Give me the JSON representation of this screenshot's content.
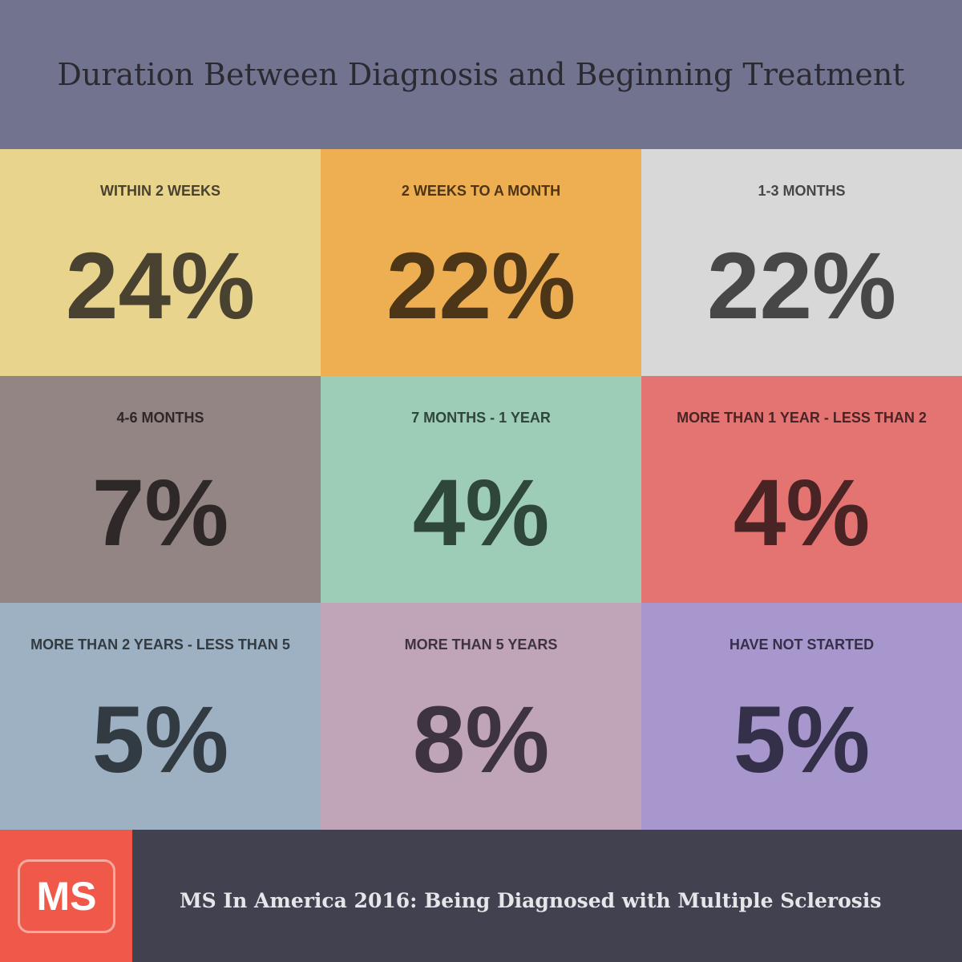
{
  "header": {
    "title": "Duration Between Diagnosis and Beginning Treatment"
  },
  "tiles": [
    {
      "label": "WITHIN 2 WEEKS",
      "value": "24%"
    },
    {
      "label": "2 WEEKS TO A MONTH",
      "value": "22%"
    },
    {
      "label": "1-3 MONTHS",
      "value": "22%"
    },
    {
      "label": "4-6 MONTHS",
      "value": "7%"
    },
    {
      "label": "7 MONTHS - 1 YEAR",
      "value": "4%"
    },
    {
      "label": "MORE THAN 1 YEAR - LESS THAN 2",
      "value": "4%"
    },
    {
      "label": "MORE THAN 2 YEARS - LESS THAN 5",
      "value": "5%"
    },
    {
      "label": "MORE THAN 5 YEARS",
      "value": "8%"
    },
    {
      "label": "HAVE NOT STARTED",
      "value": "5%"
    }
  ],
  "footer": {
    "logo": "MS",
    "caption": "MS In America 2016: Being Diagnosed with Multiple Sclerosis"
  }
}
